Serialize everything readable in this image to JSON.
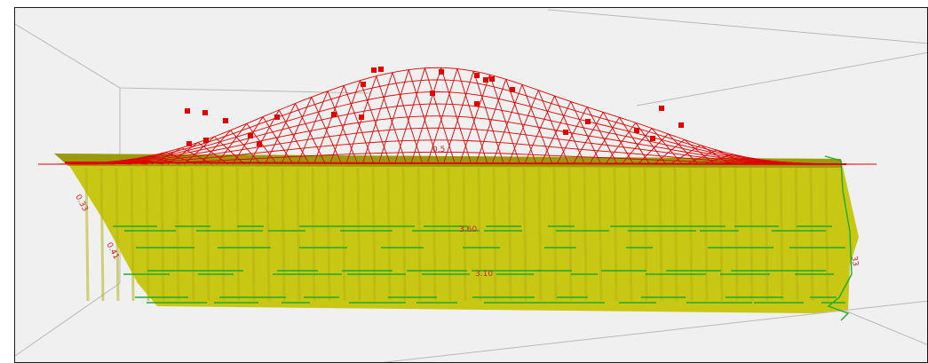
{
  "viewport": {
    "background": "#f0f0f0",
    "border_color": "#1a1a1a"
  },
  "colors": {
    "surface_fill": "#c8c814",
    "surface_dark": "#9a9a0a",
    "surface_stripe": "#b4b40f",
    "mesh_red": "#e00000",
    "contour_green": "#1faa2a",
    "box_gray": "#b9b9b9",
    "label_red": "#cc2222"
  },
  "labels": {
    "contour_mid": "3.60",
    "contour_low": "3.10",
    "left_a": "0.33",
    "left_b": "0.41",
    "right_a": "33",
    "top_small": "0.5"
  }
}
